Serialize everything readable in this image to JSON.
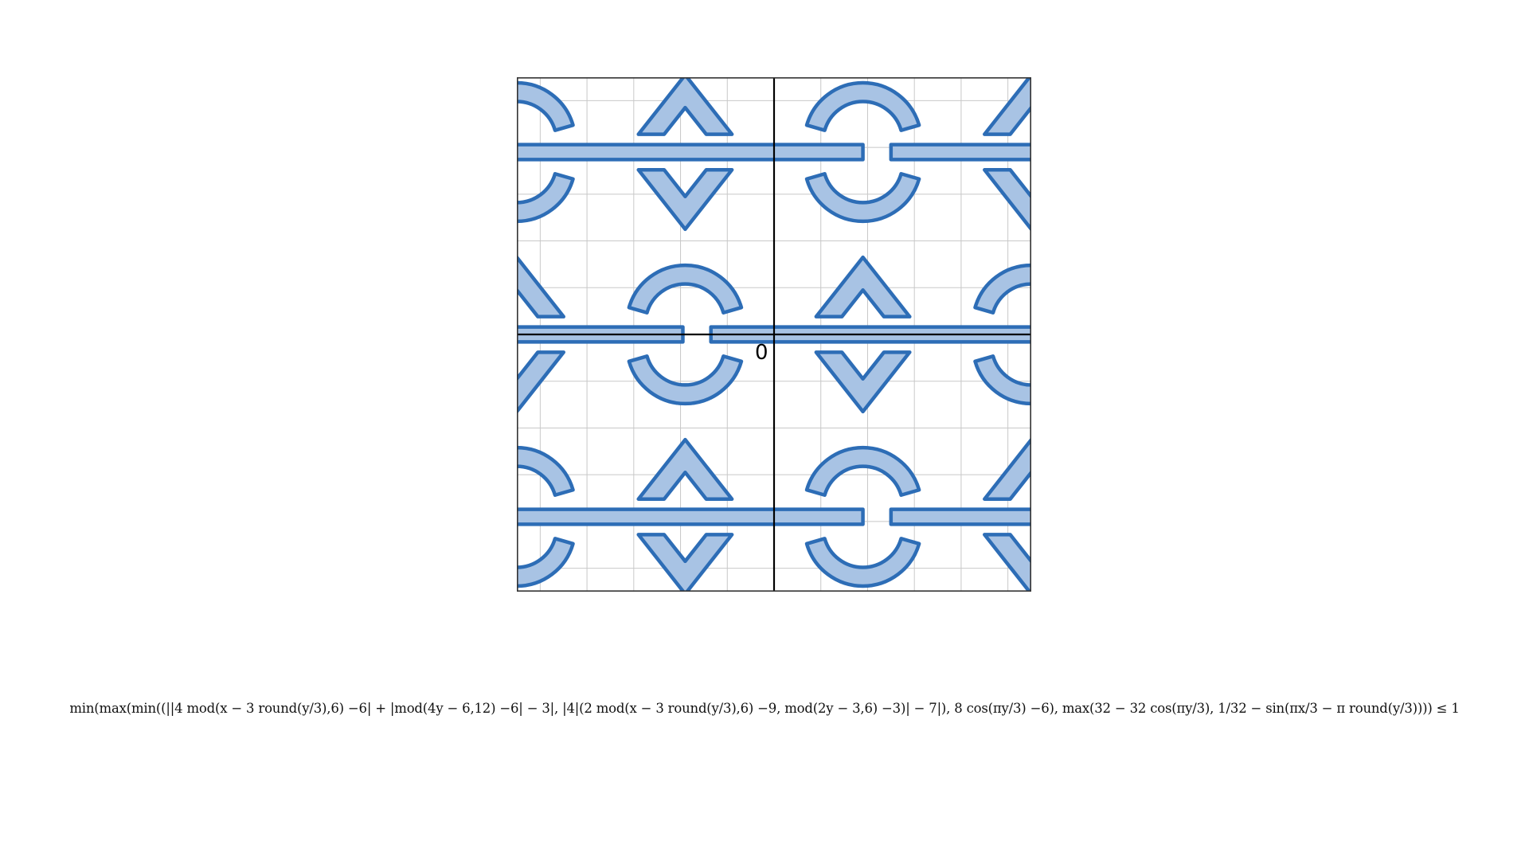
{
  "graph": {
    "x_range": [
      -5.5,
      5.5
    ],
    "y_range": [
      -5.5,
      5.5
    ],
    "grid_step": 1,
    "origin_label": "0",
    "fill_color": "#a8c3e4",
    "stroke_color": "#2d6db6",
    "rows": [
      {
        "y": 3.9,
        "bar_gap_x": 2.2,
        "pattern": "shifted"
      },
      {
        "y": 0.0,
        "bar_gap_x": -1.65,
        "pattern": "base"
      },
      {
        "y": -3.9,
        "bar_gap_x": 2.2,
        "pattern": "shifted"
      }
    ]
  },
  "formula": {
    "text": "min(max(min((||4 mod(x − 3 round(y/3),6) −6| + |mod(4y − 6,12) −6| − 3|, |4|(2 mod(x − 3 round(y/3),6) −9, mod(2y − 3,6) −3)| − 7|), 8 cos(πy/3) −6), max(32 − 32 cos(πy/3), 1/32 − sin(πx/3 − π round(y/3)))) ≤ 1"
  }
}
